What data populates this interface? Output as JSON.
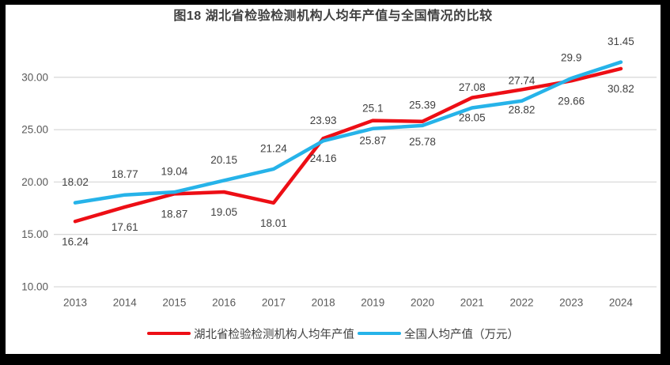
{
  "title": "图18  湖北省检验检测机构人均年产值与全国情况的比较",
  "colors": {
    "hubei_red": "#ed0e15",
    "national_blue": "#26b3e9",
    "gridline": "#d9d9d9",
    "axis_text": "#595959",
    "data_label_text": "#404040",
    "title_text": "#404040",
    "frame": "#000000"
  },
  "chart_data": {
    "type": "line",
    "x": [
      "2013",
      "2014",
      "2015",
      "2016",
      "2017",
      "2018",
      "2019",
      "2020",
      "2021",
      "2022",
      "2023",
      "2024"
    ],
    "series": [
      {
        "name": "湖北省检验检测机构人均年产值",
        "color": "#ed0e15",
        "values": [
          16.24,
          17.61,
          18.87,
          19.05,
          18.01,
          24.16,
          25.87,
          25.78,
          28.05,
          28.82,
          29.66,
          30.82
        ],
        "labels": [
          "16.24",
          "17.61",
          "18.87",
          "19.05",
          "18.01",
          "24.16",
          "25.87",
          "25.78",
          "28.05",
          "28.82",
          "29.66",
          "30.82"
        ],
        "label_position": "below"
      },
      {
        "name": "全国人均产值（万元）",
        "color": "#26b3e9",
        "values": [
          18.02,
          18.77,
          19.04,
          20.15,
          21.24,
          23.93,
          25.1,
          25.39,
          27.08,
          27.74,
          29.9,
          31.45
        ],
        "labels": [
          "18.02",
          "18.77",
          "19.04",
          "20.15",
          "21.24",
          "23.93",
          "25.1",
          "25.39",
          "27.08",
          "27.74",
          "29.9",
          "31.45"
        ],
        "label_position": "above"
      }
    ],
    "y_ticks": [
      {
        "value": 10,
        "label": "10.00"
      },
      {
        "value": 15,
        "label": "15.00"
      },
      {
        "value": 20,
        "label": "20.00"
      },
      {
        "value": 25,
        "label": "25.00"
      },
      {
        "value": 30,
        "label": "30.00"
      }
    ],
    "ylim": [
      10,
      33
    ],
    "grid": "horizontal",
    "legend_position": "bottom"
  }
}
